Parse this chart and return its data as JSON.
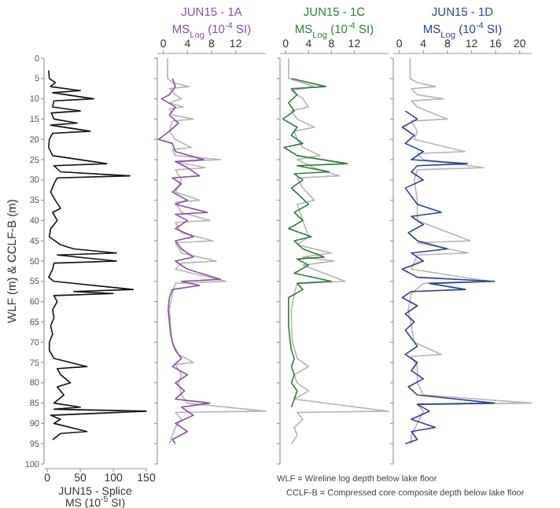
{
  "chart_data": [
    {
      "type": "line",
      "ylabel": "WLF (m) & CCLF-B (m)",
      "xlabel": "JUN15 - Splice\nMS (10$^{-5}$ SI)",
      "xlim": [
        -5,
        150
      ],
      "xticks": [
        0,
        50,
        100,
        150
      ],
      "ylim": [
        100,
        0
      ],
      "yticks": [
        0,
        5,
        10,
        15,
        20,
        25,
        30,
        35,
        40,
        45,
        50,
        55,
        60,
        65,
        70,
        75,
        80,
        85,
        90,
        95,
        100
      ],
      "series": [
        {
          "color": "#111111",
          "x": [
            2,
            3,
            12,
            5,
            50,
            8,
            70,
            10,
            8,
            50,
            6,
            10,
            45,
            5,
            65,
            8,
            3,
            2,
            8,
            90,
            10,
            20,
            125,
            15,
            10,
            5,
            12,
            20,
            8,
            15,
            5,
            3,
            20,
            40,
            105,
            15,
            105,
            10,
            8,
            2,
            10,
            130,
            40,
            100,
            10,
            15,
            8,
            10,
            5,
            8,
            3,
            3,
            10,
            60,
            15,
            20,
            35,
            15,
            25,
            10,
            50,
            10,
            150,
            5,
            20,
            10,
            60,
            20,
            8
          ],
          "values": [
            3,
            5,
            6,
            7,
            8,
            8.5,
            10,
            10.5,
            12,
            13,
            13.5,
            15,
            16,
            16.5,
            18,
            18.5,
            20,
            22,
            24,
            26,
            26.5,
            28,
            29,
            29.5,
            31,
            33,
            35,
            37,
            38,
            40,
            42,
            44,
            46,
            47,
            48,
            48.5,
            50,
            50.5,
            52,
            54,
            55,
            57,
            57.5,
            58,
            58.5,
            60,
            62,
            64,
            66,
            68,
            70,
            72,
            74,
            76,
            76.5,
            78,
            80,
            81,
            83,
            85,
            86,
            86.5,
            87,
            88,
            89,
            90,
            92,
            92.5,
            94
          ]
        }
      ]
    },
    {
      "type": "line",
      "title": "JUN15 - 1A",
      "xlabel": "MS$_{Log}$ (10$^{-4}$ SI)",
      "xlim": [
        -1,
        17
      ],
      "xticks": [
        0,
        4,
        8,
        12
      ],
      "ylim": [
        100,
        0
      ],
      "yticks": [
        0,
        5,
        10,
        15,
        20,
        25,
        30,
        35,
        40,
        45,
        50,
        55,
        60,
        65,
        70,
        75,
        80,
        85,
        90,
        95,
        100
      ],
      "tick_labels": "x",
      "series": [
        {
          "color": "#b4b4b4",
          "x": [
            0.7,
            0.7,
            1.5,
            4.2,
            1,
            2,
            3,
            1,
            3.3,
            1,
            1.5,
            5,
            1.5,
            1,
            2,
            4.6,
            1.5,
            2,
            9.5,
            2,
            7,
            2,
            3,
            2,
            6,
            2,
            3,
            7.7,
            2,
            3,
            8.2,
            2,
            3,
            8.8,
            3,
            2,
            10.4,
            2,
            1.5,
            1,
            1.2,
            1.5,
            2.5,
            5,
            2,
            3,
            2.5,
            3,
            4,
            17,
            2,
            3,
            2,
            1.5,
            1
          ],
          "values": [
            0,
            5,
            6,
            7,
            7.5,
            9,
            10,
            11,
            12,
            12.5,
            14,
            15,
            15.5,
            18,
            20,
            22,
            22.5,
            24,
            25,
            25.5,
            27,
            27.5,
            30,
            33,
            35,
            35.5,
            38,
            40,
            40.5,
            43,
            45,
            45.5,
            48,
            50,
            50.5,
            52,
            55,
            55.5,
            58,
            62,
            66,
            70,
            73,
            75,
            75.5,
            78,
            80,
            83,
            85,
            87,
            87.3,
            89,
            91,
            93,
            95
          ]
        },
        {
          "color": "#8a4fa8",
          "x": [
            1.5,
            2,
            1,
            -0.3,
            2,
            1,
            2.5,
            1,
            -0.8,
            1.5,
            2,
            6.7,
            2,
            4,
            6,
            1.5,
            3,
            1.5,
            4,
            2,
            7.3,
            2,
            4,
            2,
            5,
            2,
            3,
            5,
            2,
            4,
            9.5,
            3,
            6,
            1.5,
            1,
            0.8,
            1,
            1.2,
            1.5,
            2,
            3,
            1.5,
            4,
            2,
            3.5,
            2,
            7.7,
            3,
            5,
            2,
            4,
            1.5,
            2
          ],
          "values": [
            5,
            7,
            9,
            10,
            12,
            14,
            16,
            18,
            20,
            21,
            23,
            25,
            25.5,
            27,
            29,
            29.5,
            31,
            33,
            35,
            36,
            38,
            38.5,
            40,
            42,
            44,
            45,
            47,
            49,
            50,
            52,
            54.5,
            55,
            56,
            57,
            59,
            62,
            65,
            68,
            70,
            72,
            74,
            76,
            78,
            80,
            82,
            84,
            85,
            86,
            88,
            90,
            92,
            94,
            95
          ]
        }
      ]
    },
    {
      "type": "line",
      "title": "JUN15 - 1C",
      "xlabel": "MS$_{Log}$ (10$^{-4}$ SI)",
      "xlim": [
        -1,
        18
      ],
      "xticks": [
        0,
        4,
        8,
        12
      ],
      "ylim": [
        100,
        0
      ],
      "yticks": [
        0,
        5,
        10,
        15,
        20,
        25,
        30,
        35,
        40,
        45,
        50,
        55,
        60,
        65,
        70,
        75,
        80,
        85,
        90,
        95,
        100
      ],
      "tick_labels": "x",
      "series": [
        {
          "color": "#b4b4b4",
          "x": [
            0.5,
            0.5,
            5,
            1,
            3,
            4,
            1,
            2,
            5,
            1.5,
            2,
            3,
            6,
            2,
            5,
            9.4,
            2,
            3,
            5,
            2,
            3,
            4,
            2,
            8,
            3,
            8.5,
            3,
            10.4,
            2,
            1.5,
            1,
            1,
            1.2,
            2,
            4,
            1.5,
            2,
            4,
            1.5,
            18,
            2,
            3,
            1.5,
            2,
            1
          ],
          "values": [
            0,
            5,
            7,
            8,
            10,
            12,
            13,
            15,
            17,
            18,
            20,
            22,
            24,
            25,
            27,
            29,
            29.5,
            32,
            35,
            36,
            40,
            44,
            46,
            48,
            49,
            50,
            51,
            55,
            55.5,
            58,
            62,
            66,
            70,
            74,
            76,
            78,
            80,
            82,
            84,
            87,
            87.3,
            89,
            91,
            93,
            95
          ]
        },
        {
          "color": "#2e7d3a",
          "x": [
            1,
            7,
            1,
            2,
            0.5,
            1.5,
            -0.5,
            2,
            1,
            3,
            -0.3,
            2,
            10.8,
            2,
            7.6,
            1.5,
            3,
            1,
            2.5,
            4,
            1.5,
            3,
            0.5,
            4.5,
            1.5,
            3,
            6.7,
            2,
            4,
            1.5,
            8,
            2,
            3,
            0.5,
            0.5,
            0.5,
            0.8,
            1,
            1.5,
            1,
            1.5,
            1,
            2,
            1.5,
            1
          ],
          "values": [
            5,
            7,
            7.5,
            9,
            11,
            13,
            15,
            17,
            19,
            21,
            22,
            24,
            26,
            26.5,
            28,
            28.5,
            30,
            32,
            34,
            36,
            38,
            40,
            42,
            44,
            45,
            47,
            49,
            49.5,
            51,
            53,
            55,
            55.5,
            57,
            59,
            62,
            66,
            70,
            72,
            74,
            76,
            78,
            80,
            82,
            84,
            86
          ]
        }
      ]
    },
    {
      "type": "line",
      "title": "JUN15 - 1D",
      "xlabel": "MS$_{Log}$ (10$^{-4}$ SI)",
      "xlim": [
        -1,
        22
      ],
      "xticks": [
        0,
        4,
        8,
        12,
        16,
        20
      ],
      "ylim": [
        100,
        0
      ],
      "yticks": [
        0,
        5,
        10,
        15,
        20,
        25,
        30,
        35,
        40,
        45,
        50,
        55,
        60,
        65,
        70,
        75,
        80,
        85,
        90,
        95,
        100
      ],
      "tick_labels": "x",
      "annotations": [
        "WLF = Wireline log depth below lake floor",
        "CCLF-B = Compressed core composite depth below lake floor"
      ],
      "series": [
        {
          "color": "#b4b4b4",
          "x": [
            1.8,
            1.8,
            3,
            6,
            2,
            3,
            7.3,
            2,
            3,
            8,
            2,
            3,
            2.5,
            10.9,
            3,
            4,
            14,
            3,
            2.5,
            3,
            3,
            11.8,
            3,
            11.5,
            3,
            2,
            15,
            4,
            2,
            1.5,
            2,
            2.5,
            7,
            2,
            3,
            3,
            4,
            22,
            3,
            4,
            3,
            2,
            2
          ],
          "values": [
            0,
            5,
            6,
            7,
            7.5,
            9,
            10,
            10.5,
            12,
            15,
            15.5,
            18,
            20,
            23,
            23.5,
            25,
            27,
            27.5,
            30,
            35,
            40,
            45,
            45.5,
            48,
            48.5,
            52,
            55,
            55.5,
            58,
            62,
            66,
            70,
            73,
            73.5,
            76,
            80,
            83,
            85,
            85.3,
            87,
            90,
            93,
            95
          ]
        },
        {
          "color": "#2b3f9e",
          "x": [
            1,
            3,
            0.5,
            2.5,
            1,
            4,
            2,
            11.3,
            3,
            2,
            4,
            1,
            2,
            3,
            7,
            2,
            4,
            1.5,
            3,
            8,
            2,
            4,
            0.5,
            3,
            15.8,
            5,
            11,
            2,
            0.5,
            3,
            1,
            2.5,
            1,
            2,
            3,
            1,
            3,
            2,
            4,
            1.5,
            3,
            15.8,
            3,
            5,
            2,
            6,
            2,
            3,
            1
          ],
          "values": [
            13,
            15,
            17,
            19,
            21,
            23,
            25,
            26,
            26.5,
            28,
            30,
            32,
            34,
            36,
            38,
            39,
            41,
            43,
            45,
            47,
            48,
            50,
            52,
            54,
            55,
            55.5,
            57,
            57.5,
            59,
            61,
            63,
            65,
            67,
            69,
            71,
            73,
            75,
            77,
            79,
            81,
            83,
            85,
            85.3,
            87,
            89,
            91,
            92,
            94,
            95
          ]
        }
      ]
    }
  ]
}
